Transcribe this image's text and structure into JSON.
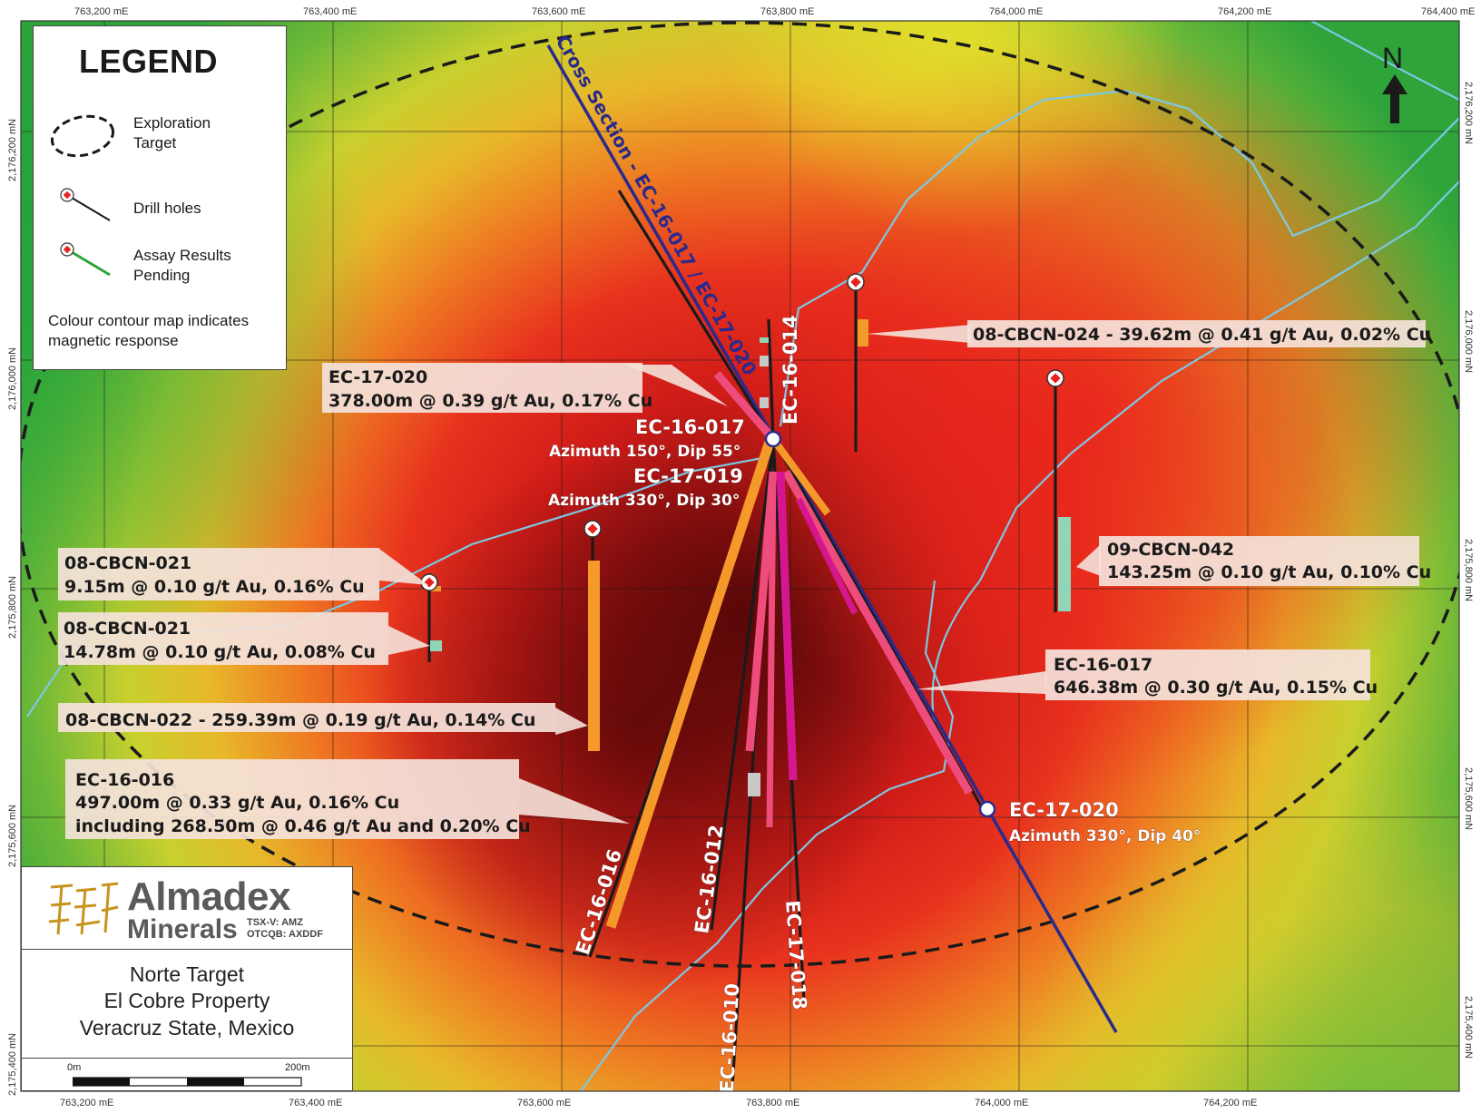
{
  "colors": {
    "magnetic_low": "#2ea43a",
    "magnetic_mid": "#e8d32a",
    "magnetic_high": "#e52420",
    "magnetic_core": "#7a0a0a",
    "cross_section_line": "#2a2a8c",
    "stream_lines": "#7cc8e4",
    "callout_bg": "#f4e2da",
    "assay_orange": "#f59a2a",
    "assay_pink": "#ee4c7c",
    "assay_magenta": "#d6168e",
    "assay_teal": "#8fd6b8"
  },
  "grid": {
    "top_labels": [
      "763,200 mE",
      "763,400 mE",
      "763,600 mE",
      "763,800 mE",
      "764,000 mE",
      "764,200 mE",
      "764,400 mE"
    ],
    "bottom_labels": [
      "763,200 mE",
      "763,400 mE",
      "763,600 mE",
      "763,800 mE",
      "764,000 mE",
      "764,200 mE"
    ],
    "left_labels": [
      "2,176,200 mN",
      "2,176,000 mN",
      "2,175,800 mN",
      "2,175,600 mN",
      "2,175,400 mN"
    ],
    "right_labels": [
      "2,176,200 mN",
      "2,176,000 mN",
      "2,175,800 mN",
      "2,175,600 mN",
      "2,175,400 mN"
    ]
  },
  "legend": {
    "title": "LEGEND",
    "exploration_target": "Exploration Target",
    "drill_holes": "Drill holes",
    "assay_pending": "Assay Results Pending",
    "note": "Colour contour map indicates magnetic response"
  },
  "north_label": "N",
  "cross_section_label": "Cross Section - EC-16-017 / EC-17-020",
  "hole_labels": {
    "ec16014": "EC-16-014",
    "ec16016": "EC-16-016",
    "ec16012": "EC-16-012",
    "ec16010": "EC-16-010",
    "ec17018": "EC-17-018",
    "ec16017_name": "EC-16-017",
    "ec16017_az": "Azimuth 150°, Dip 55°",
    "ec17019_name": "EC-17-019",
    "ec17019_az": "Azimuth 330°, Dip 30°",
    "ec17020_name": "EC-17-020",
    "ec17020_az": "Azimuth 330°, Dip 40°"
  },
  "callouts": {
    "c1_l1": "EC-17-020",
    "c1_l2": "378.00m @ 0.39 g/t Au, 0.17% Cu",
    "c2_l1": "08-CBCN-024  -  39.62m @ 0.41 g/t Au, 0.02% Cu",
    "c3_l1": "09-CBCN-042",
    "c3_l2": "143.25m @ 0.10 g/t Au, 0.10% Cu",
    "c4_l1": "08-CBCN-021",
    "c4_l2": "9.15m @ 0.10 g/t Au, 0.16% Cu",
    "c5_l1": "08-CBCN-021",
    "c5_l2": "14.78m @ 0.10 g/t Au, 0.08% Cu",
    "c6_l1": "EC-16-017",
    "c6_l2": "646.38m @ 0.30 g/t Au, 0.15% Cu",
    "c7_l1": "08-CBCN-022  -  259.39m @ 0.19 g/t Au, 0.14% Cu",
    "c8_l1": "EC-16-016",
    "c8_l2": "497.00m @ 0.33 g/t Au, 0.16% Cu",
    "c8_l3": "including 268.50m @ 0.46 g/t Au and 0.20% Cu"
  },
  "title_block": {
    "company": "Almadex",
    "company_sub": "Minerals",
    "ticker1": "TSX-V: AMZ",
    "ticker2": "OTCQB: AXDDF",
    "line1": "Norte Target",
    "line2": "El Cobre Property",
    "line3": "Veracruz State, Mexico",
    "scale_start": "0m",
    "scale_end": "200m"
  }
}
